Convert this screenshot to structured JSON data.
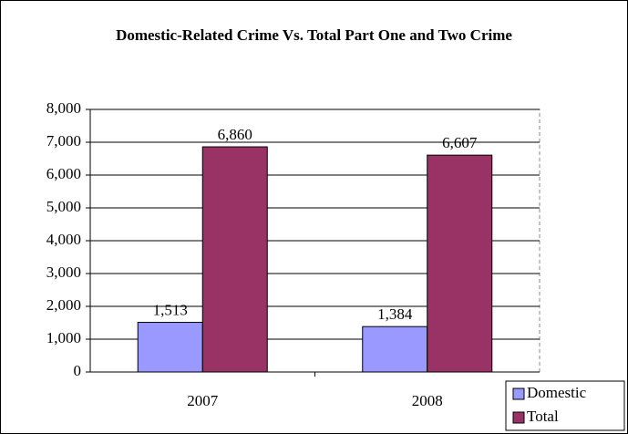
{
  "chart_data": {
    "type": "bar",
    "title": "Domestic-Related Crime Vs. Total Part One and Two Crime",
    "categories": [
      "2007",
      "2008"
    ],
    "series": [
      {
        "name": "Domestic",
        "color": "#9999ff",
        "values": [
          1513,
          1384
        ],
        "value_labels": [
          "1,513",
          "1,384"
        ]
      },
      {
        "name": "Total",
        "color": "#993366",
        "values": [
          6860,
          6607
        ],
        "value_labels": [
          "6,860",
          "6,607"
        ]
      }
    ],
    "ylim": [
      0,
      8000
    ],
    "yticks": [
      0,
      {
        "value": 1000,
        "label": "1,000"
      },
      {
        "value": 2000,
        "label": "2,000"
      },
      {
        "value": 3000,
        "label": "3,000"
      },
      {
        "value": 4000,
        "label": "4,000"
      },
      {
        "value": 5000,
        "label": "5,000"
      },
      {
        "value": 6000,
        "label": "6,000"
      },
      {
        "value": 7000,
        "label": "7,000"
      },
      {
        "value": 8000,
        "label": "8,000"
      }
    ],
    "grid": true,
    "legend": "bottom-right"
  }
}
